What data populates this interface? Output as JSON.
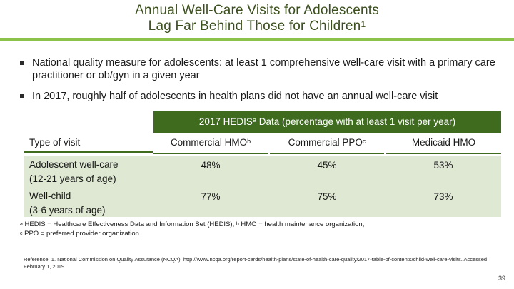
{
  "title": {
    "line1": "Annual Well-Care Visits for Adolescents",
    "line2": "Lag Far Behind Those for Children",
    "line2_sup": "1"
  },
  "colors": {
    "title": "#3b4f1d",
    "accent_rule": "#8bc34a",
    "table_header": "#3f6b1f",
    "row_fill": "#dfe8d2"
  },
  "bullets": [
    "National quality measure for adolescents: at least 1 comprehensive well-care visit with a primary care practitioner or ob/gyn in a given year",
    "In 2017, roughly half of adolescents in health plans did not have an annual well-care visit"
  ],
  "table": {
    "header_pre": "2017 HEDIS",
    "header_sup": "a",
    "header_post": " Data (percentage with at least 1 visit per year)",
    "columns": [
      {
        "label": "Type of visit",
        "sup": ""
      },
      {
        "label": "Commercial HMO",
        "sup": "b"
      },
      {
        "label": "Commercial PPO",
        "sup": "c"
      },
      {
        "label": "Medicaid HMO",
        "sup": ""
      }
    ],
    "rows": [
      {
        "label_line1": "Adolescent well-care",
        "label_line2": "(12-21 years of age)",
        "values": [
          "48%",
          "45%",
          "53%"
        ]
      },
      {
        "label_line1": "Well-child",
        "label_line2": "(3-6 years of age)",
        "values": [
          "77%",
          "75%",
          "73%"
        ]
      }
    ]
  },
  "footnotes": {
    "a_mark": "a",
    "a_text": " HEDIS = Healthcare Effectiveness Data and Information Set (HEDIS); ",
    "b_mark": "b",
    "b_text": " HMO = health maintenance organization;",
    "c_mark": "c",
    "c_text": " PPO = preferred provider organization."
  },
  "reference": "Reference: 1. National Commission on Quality Assurance (NCQA). http://www.ncqa.org/report-cards/health-plans/state-of-health-care-quality/2017-table-of-contents/child-well-care-visits. Accessed February 1, 2019.",
  "page_number": "39"
}
